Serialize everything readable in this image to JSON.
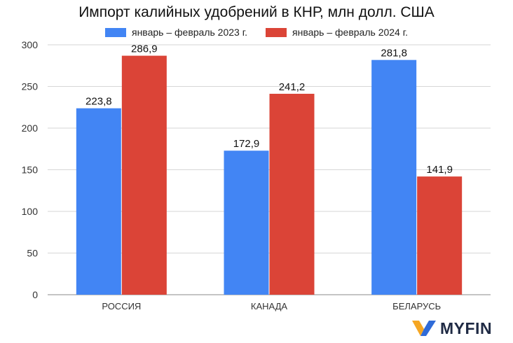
{
  "chart_data": {
    "type": "bar",
    "title": "Импорт калийных удобрений в КНР, млн долл. США",
    "categories": [
      "РОССИЯ",
      "КАНАДА",
      "БЕЛАРУСЬ"
    ],
    "series": [
      {
        "name": "январь – февраль 2023 г.",
        "values": [
          223.8,
          172.9,
          281.8
        ],
        "labels": [
          "223,8",
          "172,9",
          "281,8"
        ],
        "color": "#4285f4"
      },
      {
        "name": "январь – февраль 2024 г.",
        "values": [
          286.9,
          241.2,
          141.9
        ],
        "labels": [
          "286,9",
          "241,2",
          "141,9"
        ],
        "color": "#db4437"
      }
    ],
    "ylim": [
      0,
      300
    ],
    "yticks": [
      0,
      50,
      100,
      150,
      200,
      250,
      300
    ],
    "grid": true,
    "legend_position": "top-center",
    "xlabel": "",
    "ylabel": ""
  },
  "logo": {
    "text": "MYFIN",
    "colors": {
      "orange": "#f5a623",
      "blue": "#2f6bd8"
    }
  }
}
